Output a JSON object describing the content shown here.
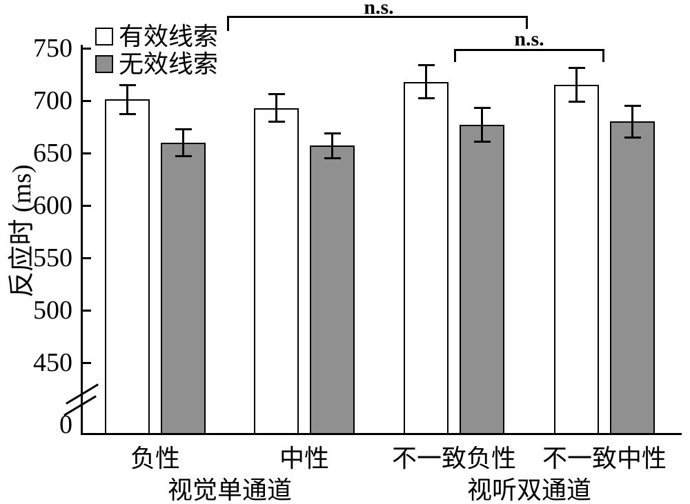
{
  "chart_data": {
    "type": "bar",
    "title": "",
    "ylabel": "反应时 (ms)",
    "xlabel": "",
    "y_ticks": [
      750,
      700,
      650,
      600,
      550,
      500,
      450
    ],
    "y_origin_label": "0",
    "axis_break": true,
    "y_axis_range_shown": [
      450,
      750
    ],
    "grid": false,
    "legend_position": "top-left",
    "categories": [
      "负性",
      "中性",
      "不一致负性",
      "不一致中性"
    ],
    "group_labels": [
      "视觉单通道",
      "视听双通道"
    ],
    "series": [
      {
        "name": "有效线索",
        "fill": "#ffffff",
        "values": [
          701,
          693,
          718,
          715
        ],
        "errors": [
          15,
          14,
          17,
          17
        ]
      },
      {
        "name": "无效线索",
        "fill": "#909090",
        "values": [
          660,
          657,
          677,
          680
        ],
        "errors": [
          14,
          13,
          17,
          16
        ]
      }
    ],
    "annotations": [
      {
        "label": "n.s.",
        "compares": [
          "视觉单通道",
          "视听双通道"
        ]
      },
      {
        "label": "n.s.",
        "compares": [
          "不一致负性",
          "不一致中性"
        ]
      }
    ],
    "colors": {
      "axis": "#000000",
      "bar_border": "#000000",
      "valid_fill": "#ffffff",
      "invalid_fill": "#909090",
      "background": "#ffffff"
    }
  }
}
